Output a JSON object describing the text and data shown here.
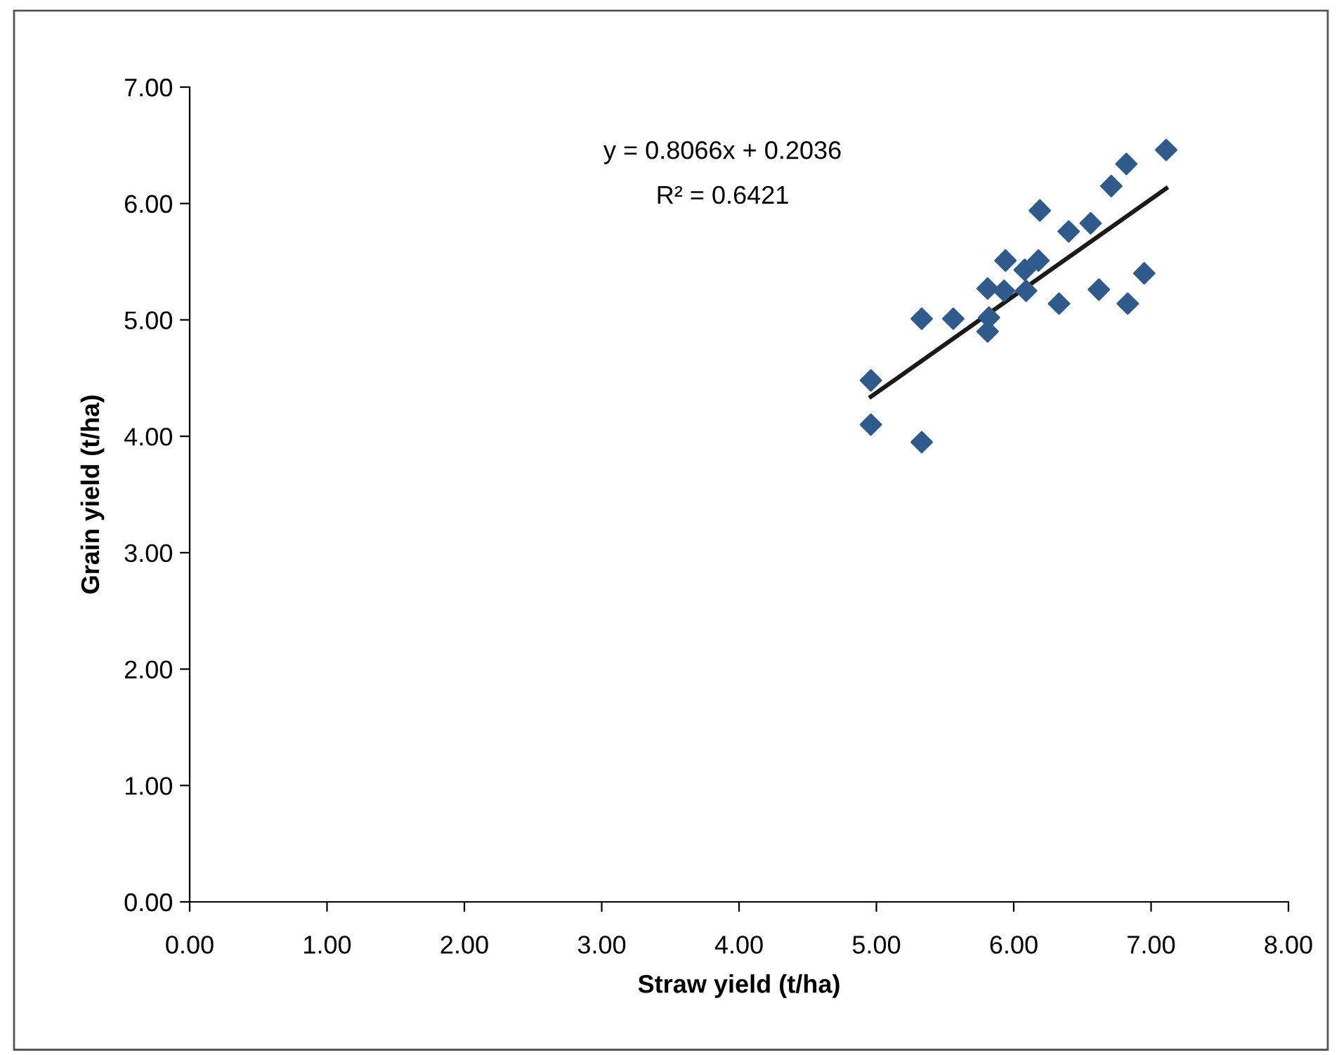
{
  "chart_data": {
    "type": "scatter",
    "xlabel": "Straw yield (t/ha)",
    "ylabel": "Grain yield (t/ha)",
    "annotations": [
      "y = 0.8066x + 0.2036",
      "R² = 0.6421"
    ],
    "xlim": [
      0,
      8
    ],
    "ylim": [
      0,
      7
    ],
    "xticks": [
      {
        "value": 0,
        "label": "0.00"
      },
      {
        "value": 1,
        "label": "1.00"
      },
      {
        "value": 2,
        "label": "2.00"
      },
      {
        "value": 3,
        "label": "3.00"
      },
      {
        "value": 4,
        "label": "4.00"
      },
      {
        "value": 5,
        "label": "5.00"
      },
      {
        "value": 6,
        "label": "6.00"
      },
      {
        "value": 7,
        "label": "7.00"
      },
      {
        "value": 8,
        "label": "8.00"
      }
    ],
    "yticks": [
      {
        "value": 0,
        "label": "0.00"
      },
      {
        "value": 1,
        "label": "1.00"
      },
      {
        "value": 2,
        "label": "2.00"
      },
      {
        "value": 3,
        "label": "3.00"
      },
      {
        "value": 4,
        "label": "4.00"
      },
      {
        "value": 5,
        "label": "5.00"
      },
      {
        "value": 6,
        "label": "6.00"
      },
      {
        "value": 7,
        "label": "7.00"
      }
    ],
    "grid": false,
    "legend": false,
    "marker": "diamond",
    "series": [
      {
        "color": "#2f5b8c",
        "x": [
          4.96,
          4.96,
          5.33,
          5.33,
          5.56,
          5.81,
          5.81,
          5.82,
          5.93,
          5.94,
          6.08,
          6.09,
          6.18,
          6.19,
          6.33,
          6.4,
          6.56,
          6.62,
          6.71,
          6.82,
          6.83,
          6.95,
          7.11
        ],
        "values": [
          4.48,
          4.1,
          5.01,
          3.95,
          5.01,
          5.27,
          4.9,
          5.02,
          5.25,
          5.51,
          5.43,
          5.25,
          5.51,
          5.94,
          5.14,
          5.76,
          5.83,
          5.26,
          6.15,
          6.34,
          5.14,
          5.4,
          6.46
        ]
      },
      {
        "type": "line",
        "color": "#1a1a1a",
        "marker": "none",
        "line_style": "solid",
        "x": [
          4.96,
          7.11
        ],
        "values": [
          4.34,
          6.13
        ]
      }
    ]
  }
}
